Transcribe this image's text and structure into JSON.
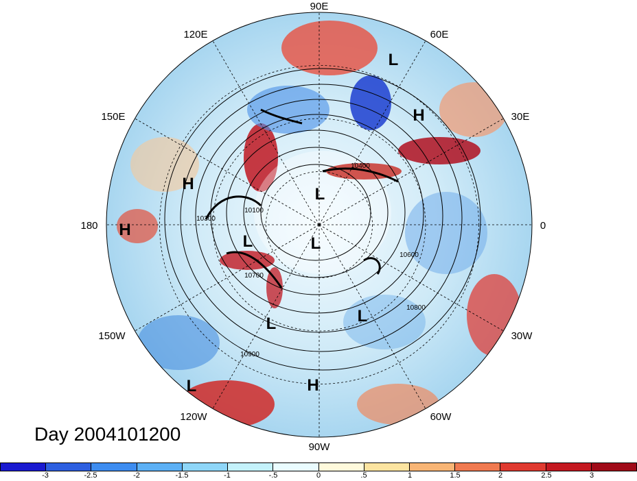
{
  "title": "Day 2004101200",
  "longitude_labels": [
    "90E",
    "60E",
    "30E",
    "0",
    "30W",
    "60W",
    "90W",
    "120W",
    "150W",
    "180",
    "150E",
    "120E"
  ],
  "pressure_centers": [
    {
      "type": "L",
      "region": "Siberia-north"
    },
    {
      "type": "H",
      "region": "Central Asia"
    },
    {
      "type": "H",
      "region": "Kamchatka"
    },
    {
      "type": "H",
      "region": "Dateline"
    },
    {
      "type": "L",
      "region": "Beaufort"
    },
    {
      "type": "L",
      "region": "Pole"
    },
    {
      "type": "L",
      "region": "Alaska"
    },
    {
      "type": "L",
      "region": "Pacific NW Canada"
    },
    {
      "type": "L",
      "region": "Labrador"
    },
    {
      "type": "L",
      "region": "Subtropical Pacific"
    },
    {
      "type": "H",
      "region": "Caribbean"
    }
  ],
  "contour_labels": [
    "10400",
    "10100",
    "10300",
    "10700",
    "10600",
    "10800",
    "10900"
  ],
  "colorbar": {
    "labels": [
      "-3",
      "-2.5",
      "-2",
      "-1.5",
      "-1",
      "-.5",
      "0",
      ".5",
      "1",
      "1.5",
      "2",
      "2.5",
      "3"
    ],
    "colors": [
      "#1a1ad0",
      "#2d5fe0",
      "#3d8cf0",
      "#5cb0f5",
      "#8ed6f8",
      "#c4f2fb",
      "#eafcff",
      "#fffadc",
      "#fce4a0",
      "#f8b575",
      "#f07a50",
      "#e03a30",
      "#c41820",
      "#a00a18"
    ]
  }
}
